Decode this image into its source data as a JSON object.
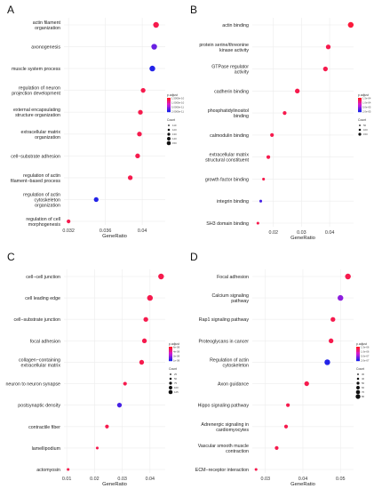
{
  "chart_data": [
    {
      "type": "scatter",
      "panel": "A",
      "xlabel": "GeneRatio",
      "xticks": [
        0.032,
        0.036,
        0.04
      ],
      "xlim": [
        0.0315,
        0.0425
      ],
      "categories": [
        "actin filament organization",
        "axonogenesis",
        "muscle system process",
        "regulation of neuron projection development",
        "external encapsulating structure organization",
        "extracellular matrix organization",
        "cell−substrate adhesion",
        "regulation of actin filament−based process",
        "regulation of actin cytoskeleton organization",
        "regulation of cell morphogenesis"
      ],
      "x": [
        0.0415,
        0.0413,
        0.0411,
        0.0401,
        0.0398,
        0.0397,
        0.0395,
        0.0387,
        0.035,
        0.032
      ],
      "count": [
        4,
        4,
        4,
        3,
        3,
        3,
        3,
        3,
        3,
        2
      ],
      "p_adjust_rank": [
        0.1,
        0.8,
        1.0,
        0.1,
        0.1,
        0.1,
        0.1,
        0.1,
        1.0,
        0.1
      ],
      "legend": {
        "color_title": "p.adjust",
        "color_ticks": [
          "1.5000e-10",
          "1.0000e-10",
          "5.0000e-11",
          "2.0000e-11"
        ],
        "size_title": "Count",
        "size_ticks": [
          "110",
          "120",
          "130",
          "140",
          "150"
        ]
      }
    },
    {
      "type": "scatter",
      "panel": "B",
      "xlabel": "GeneRatio",
      "xticks": [
        0.02,
        0.03,
        0.04
      ],
      "xlim": [
        0.0125,
        0.0485
      ],
      "categories": [
        "actin binding",
        "protein serine/threonine kinase activity",
        "GTPase regulator activity",
        "cadherin binding",
        "phosphatidylinositol binding",
        "calmodulin binding",
        "extracellular matrix structural constituent",
        "growth factor binding",
        "integrin binding",
        "SH3 domain binding"
      ],
      "x": [
        0.0475,
        0.0395,
        0.0385,
        0.0285,
        0.024,
        0.0195,
        0.0182,
        0.0165,
        0.0155,
        0.0145
      ],
      "count": [
        4,
        3,
        3,
        3,
        2,
        2,
        2,
        1,
        1,
        1
      ],
      "p_adjust_rank": [
        0.05,
        0.1,
        0.1,
        0.1,
        0.1,
        0.1,
        0.1,
        0.1,
        0.9,
        0.1
      ],
      "legend": {
        "color_title": "p.adjust",
        "color_ticks": [
          "1.5e-04",
          "1.0e-04",
          "5.0e-05",
          "2.0e-05"
        ],
        "size_title": "Count",
        "size_ticks": [
          "50",
          "100",
          "150"
        ]
      }
    },
    {
      "type": "scatter",
      "panel": "C",
      "xlabel": "GeneRatio",
      "xticks": [
        0.01,
        0.02,
        0.03,
        0.04
      ],
      "xlim": [
        0.009,
        0.0455
      ],
      "categories": [
        "cell−cell junction",
        "cell leading edge",
        "cell−substrate junction",
        "focal adhesion",
        "collagen−containing extracellular matrix",
        "neuron to neuron synapse",
        "postsynaptic density",
        "contractile fiber",
        "lamellipodium",
        "actomyosin"
      ],
      "x": [
        0.044,
        0.04,
        0.0385,
        0.038,
        0.037,
        0.031,
        0.029,
        0.0245,
        0.021,
        0.0105
      ],
      "count": [
        4,
        4,
        3,
        3,
        3,
        2,
        3,
        2,
        1,
        1
      ],
      "p_adjust_rank": [
        0.1,
        0.1,
        0.1,
        0.1,
        0.1,
        0.1,
        0.9,
        0.1,
        0.1,
        0.1
      ],
      "legend": {
        "color_title": "p.adjust",
        "color_ticks": [
          "6e-08",
          "4e-08",
          "2e-08",
          "1e-08"
        ],
        "size_title": "Count",
        "size_ticks": [
          "25",
          "50",
          "75",
          "100",
          "125"
        ]
      }
    },
    {
      "type": "scatter",
      "panel": "D",
      "xlabel": "GeneRatio",
      "xticks": [
        0.03,
        0.04,
        0.05
      ],
      "xlim": [
        0.0265,
        0.0535
      ],
      "categories": [
        "Focal adhesion",
        "Calcium signaling pathway",
        "Rap1 signaling pathway",
        "Proteoglycans in cancer",
        "Regulation of actin cytoskeleton",
        "Axon guidance",
        "Hippo signaling pathway",
        "Adrenergic signaling in cardiomyocytes",
        "Vascular smooth muscle contraction",
        "ECM−receptor interaction"
      ],
      "x": [
        0.052,
        0.05,
        0.048,
        0.0475,
        0.0465,
        0.041,
        0.036,
        0.0355,
        0.033,
        0.0275
      ],
      "count": [
        4,
        4,
        3,
        3,
        4,
        3,
        2,
        2,
        2,
        1
      ],
      "p_adjust_rank": [
        0.1,
        0.7,
        0.1,
        0.1,
        1.0,
        0.1,
        0.1,
        0.1,
        0.1,
        0.1
      ],
      "legend": {
        "color_title": "p.adjust",
        "color_ticks": [
          "1.5e-06",
          "1.0e-06",
          "5.0e-07",
          "2.0e-07"
        ],
        "size_title": "Count",
        "size_ticks": [
          "30",
          "40",
          "50",
          "60",
          "70",
          "80"
        ]
      }
    }
  ],
  "colors": {
    "low": "#ff1a2a",
    "mid": "#d31bd8",
    "high": "#2323e8",
    "grid": "#ececec"
  }
}
